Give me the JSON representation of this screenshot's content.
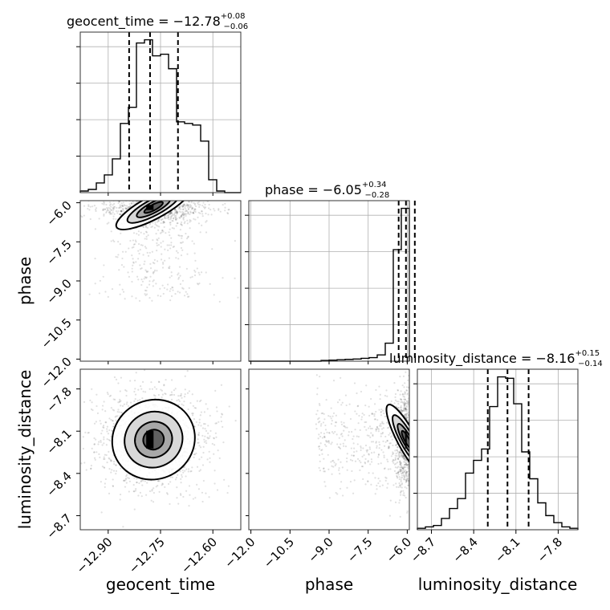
{
  "chart_data": {
    "type": "corner",
    "parameters": [
      "geocent_time",
      "phase",
      "luminosity_distance"
    ],
    "panel_titles": {
      "geocent_time": {
        "name": "geocent_time",
        "median": "−12.78",
        "plus": "+0.08",
        "minus": "−0.06"
      },
      "phase": {
        "name": "phase",
        "median": "−6.05",
        "plus": "+0.34",
        "minus": "−0.28"
      },
      "luminosity_distance": {
        "name": "luminosity_distance",
        "median": "−8.16",
        "plus": "+0.15",
        "minus": "−0.14"
      }
    },
    "axes": {
      "geocent_time": {
        "range": [
          -12.98,
          -12.52
        ],
        "ticks": [
          -12.9,
          -12.75,
          -12.6
        ],
        "tick_labels": [
          "−12.90",
          "−12.75",
          "−12.60"
        ],
        "label": "geocent_time"
      },
      "phase": {
        "range": [
          -12.08,
          -5.92
        ],
        "ticks": [
          -12.0,
          -10.5,
          -9.0,
          -7.5,
          -6.0
        ],
        "tick_labels": [
          "−12.0",
          "−10.5",
          "−9.0",
          "−7.5",
          "−6.0"
        ],
        "label": "phase"
      },
      "luminosity_distance": {
        "range": [
          -8.8,
          -7.66
        ],
        "ticks": [
          -8.7,
          -8.4,
          -8.1,
          -7.8
        ],
        "tick_labels": [
          "−8.7",
          "−8.4",
          "−8.1",
          "−7.8"
        ],
        "label": "luminosity_distance"
      }
    },
    "histograms": {
      "geocent_time": {
        "edges": [
          -12.98,
          -12.957,
          -12.934,
          -12.911,
          -12.888,
          -12.865,
          -12.842,
          -12.819,
          -12.796,
          -12.773,
          -12.75,
          -12.727,
          -12.704,
          -12.681,
          -12.658,
          -12.635,
          -12.612,
          -12.589,
          -12.566,
          -12.543,
          -12.52
        ],
        "counts": [
          1,
          2,
          6,
          11,
          21,
          43,
          53,
          93,
          95,
          85,
          86,
          77,
          44,
          43,
          42,
          32,
          8,
          1,
          0,
          0
        ]
      },
      "phase": {
        "edges": [
          -12.08,
          -11.772,
          -11.464,
          -11.156,
          -10.848,
          -10.54,
          -10.232,
          -9.924,
          -9.616,
          -9.308,
          -9.0,
          -8.692,
          -8.384,
          -8.076,
          -7.768,
          -7.46,
          -7.152,
          -6.844,
          -6.536,
          -6.228,
          -5.92
        ],
        "counts": [
          0,
          0,
          0,
          0,
          0,
          0,
          0,
          0,
          0,
          0.4,
          0.6,
          0.8,
          1,
          1.2,
          1.6,
          2,
          3.5,
          10,
          62,
          85
        ]
      },
      "luminosity_distance": {
        "edges": [
          -8.8,
          -8.743,
          -8.686,
          -8.629,
          -8.572,
          -8.515,
          -8.458,
          -8.401,
          -8.344,
          -8.287,
          -8.23,
          -8.173,
          -8.116,
          -8.059,
          -8.002,
          -7.945,
          -7.888,
          -7.831,
          -7.774,
          -7.717,
          -7.66
        ],
        "counts": [
          1,
          2,
          3,
          8,
          15,
          22,
          40,
          49,
          57,
          87,
          108,
          107,
          89,
          55,
          36,
          19,
          10,
          5,
          2,
          1
        ]
      }
    },
    "quantile_lines": {
      "geocent_time": [
        -12.84,
        -12.78,
        -12.7
      ],
      "phase": [
        -6.33,
        -6.05,
        -5.71
      ],
      "luminosity_distance": [
        -8.3,
        -8.16,
        -8.01
      ]
    },
    "contours_2d": {
      "phase_vs_geocent_time": {
        "center": [
          -12.77,
          -6.18
        ],
        "spread": [
          0.06,
          0.22
        ]
      },
      "luminosity_distance_vs_geocent_time": {
        "center": [
          -12.77,
          -8.16
        ],
        "spread": [
          0.06,
          0.14
        ]
      },
      "luminosity_distance_vs_phase": {
        "center": [
          -6.02,
          -8.16
        ],
        "spread": [
          0.18,
          0.14
        ]
      }
    },
    "grid": true
  }
}
